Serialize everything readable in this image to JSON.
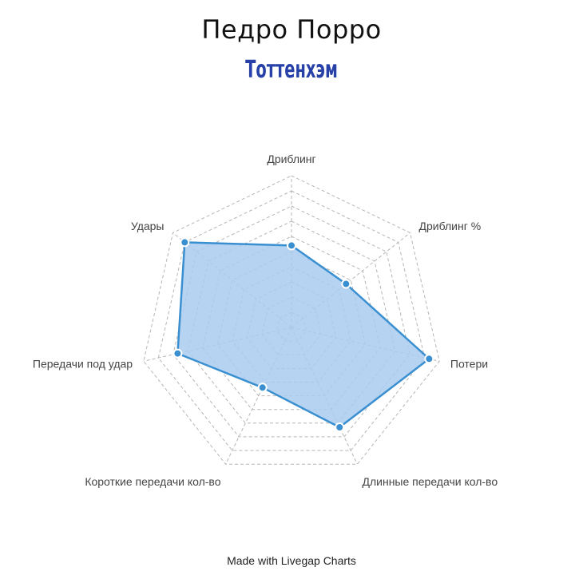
{
  "title": "Педро Порро",
  "subtitle": "Тоттенхэм",
  "footer": "Made with Livegap Charts",
  "colors": {
    "grid": "#b5b5b5",
    "series_line": "#3a8fd0",
    "series_fill": "#a9cdf0",
    "point": "#3a8fd0",
    "subtitle": "#2741a8"
  },
  "chart_data": {
    "type": "radar",
    "axes": [
      "Дриблинг",
      "Дриблинг %",
      "Потери",
      "Длинные передачи кол-во",
      "Короткие передачи кол-во",
      "Передачи под удар",
      "Удары"
    ],
    "rlim": [
      0,
      10
    ],
    "grid_levels": 10,
    "grid": true,
    "series": [
      {
        "values": [
          5.4,
          4.6,
          9.3,
          7.3,
          4.4,
          7.7,
          9.0
        ]
      }
    ]
  }
}
